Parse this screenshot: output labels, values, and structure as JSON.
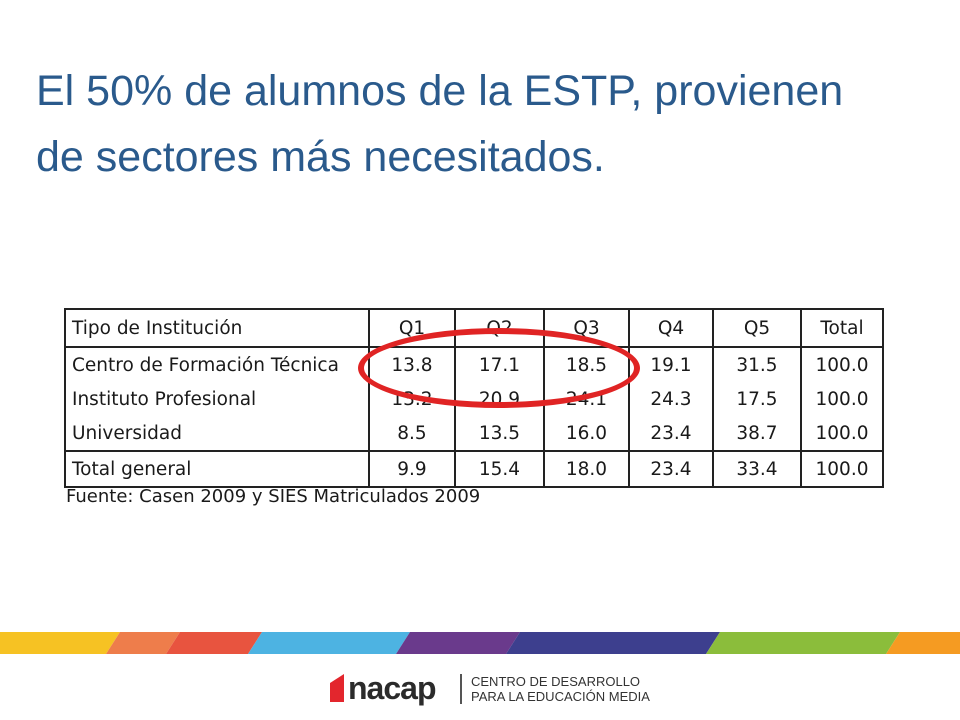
{
  "slide": {
    "title_line1": "El 50% de alumnos de la ESTP, provienen",
    "title_line2": "de sectores más necesitados."
  },
  "table": {
    "headers": [
      "Tipo de Institución",
      "Q1",
      "Q2",
      "Q3",
      "Q4",
      "Q5",
      "Total"
    ],
    "rows": [
      [
        "Centro de Formación Técnica",
        "13.8",
        "17.1",
        "18.5",
        "19.1",
        "31.5",
        "100.0"
      ],
      [
        "Instituto Profesional",
        "13.2",
        "20.9",
        "24.1",
        "24.3",
        "17.5",
        "100.0"
      ],
      [
        "Universidad",
        "8.5",
        "13.5",
        "16.0",
        "23.4",
        "38.7",
        "100.0"
      ]
    ],
    "total": [
      "Total general",
      "9.9",
      "15.4",
      "18.0",
      "23.4",
      "33.4",
      "100.0"
    ],
    "source": "Fuente: Casen 2009 y  SIES Matriculados 2009",
    "highlight_color": "#e02424"
  },
  "footer": {
    "logo_text": "nacap",
    "line1": "CENTRO DE DESARROLLO",
    "line2": "PARA LA EDUCACIÓN MEDIA",
    "stripe_colors": [
      "#f6c223",
      "#ee7d4b",
      "#e8543f",
      "#4db3e2",
      "#6a3a8c",
      "#3d3f8e",
      "#8bbd3b",
      "#f59b22"
    ]
  }
}
